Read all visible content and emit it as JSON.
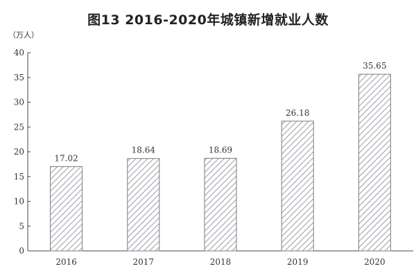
{
  "chart_data": {
    "type": "bar",
    "title": "图13  2016-2020年城镇新增就业人数",
    "ylabel": "（万人）",
    "xlabel": "",
    "categories": [
      "2016",
      "2017",
      "2018",
      "2019",
      "2020"
    ],
    "values": [
      17.02,
      18.64,
      18.69,
      26.18,
      35.65
    ],
    "value_labels": [
      "17.02",
      "18.64",
      "18.69",
      "26.18",
      "35.65"
    ],
    "yticks": [
      "0",
      "5",
      "10",
      "15",
      "20",
      "25",
      "30",
      "35",
      "40"
    ],
    "ylim": [
      0,
      40
    ],
    "grid": false,
    "bar_fill": "hatched",
    "colors": {
      "bar_stroke": "#7a7a7a",
      "hatch": "#9a9aa8",
      "axis": "#444444"
    }
  }
}
